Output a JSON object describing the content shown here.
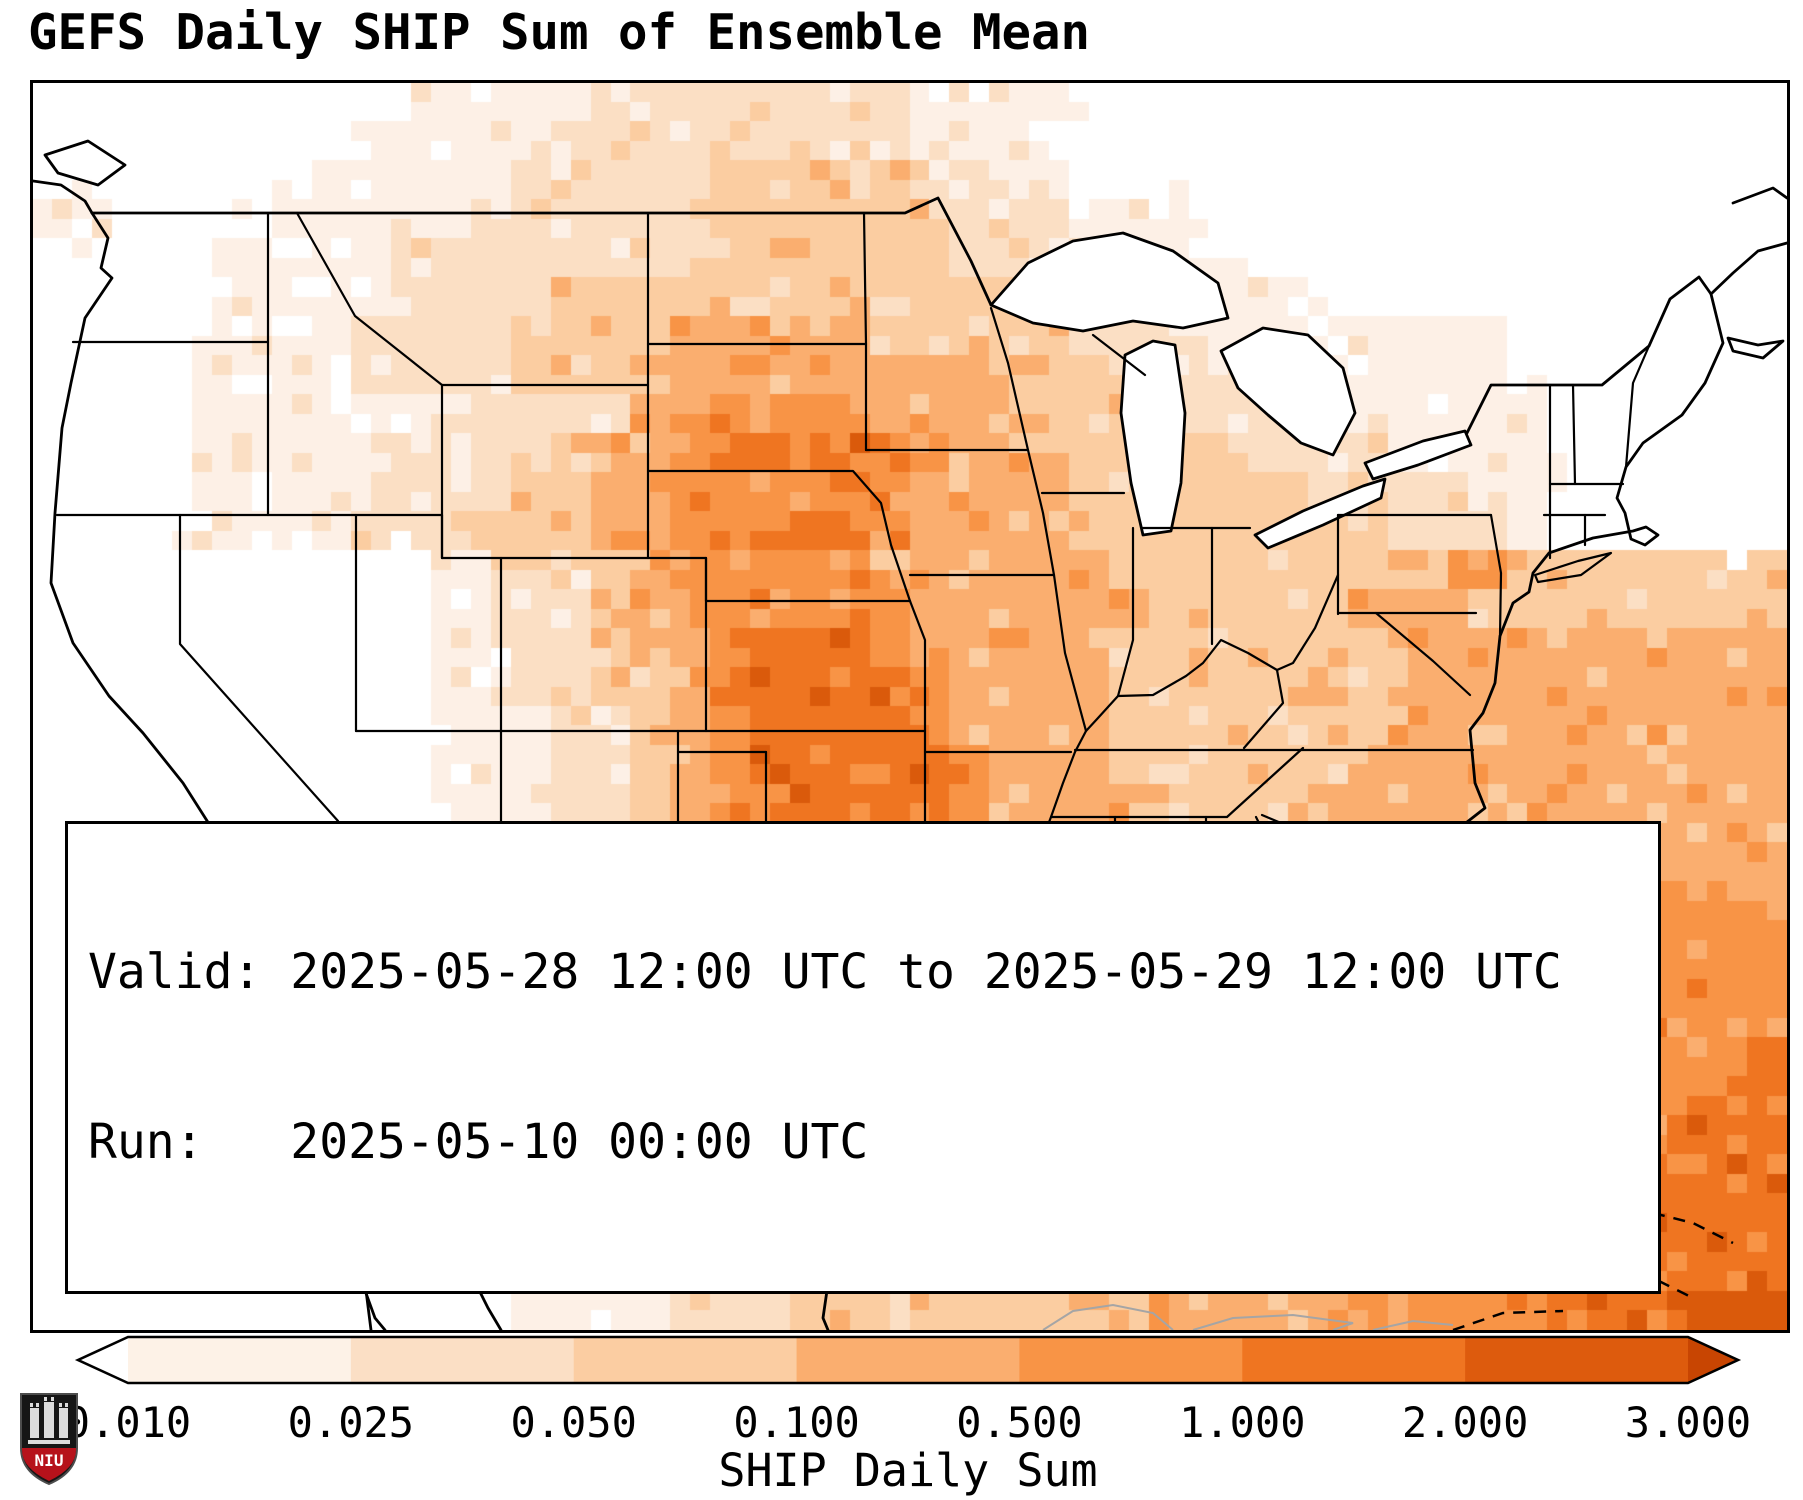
{
  "title": "GEFS Daily SHIP Sum of Ensemble Mean",
  "info": {
    "valid_line": "Valid: 2025-05-28 12:00 UTC to 2025-05-29 12:00 UTC",
    "run_line": "Run:   2025-05-10 00:00 UTC"
  },
  "colorbar": {
    "label": "SHIP Daily Sum",
    "ticks": [
      "0.010",
      "0.025",
      "0.050",
      "0.100",
      "0.500",
      "1.000",
      "2.000",
      "3.000"
    ],
    "segment_colors": [
      "#fdf2e7",
      "#fbdfc5",
      "#fbcda2",
      "#faae6f",
      "#f89446",
      "#ef7521",
      "#dd5b0d"
    ],
    "under_color": "#ffffff",
    "over_color": "#c84502"
  },
  "logo": {
    "text": "NIU"
  },
  "chart_data": {
    "type": "heatmap",
    "title": "GEFS Daily SHIP Sum of Ensemble Mean",
    "variable": "SHIP Daily Sum",
    "valid": "2025-05-28 12:00 UTC to 2025-05-29 12:00 UTC",
    "run": "2025-05-10 00:00 UTC",
    "scale_values": [
      0.01,
      0.025,
      0.05,
      0.1,
      0.5,
      1.0,
      2.0,
      3.0
    ],
    "palette": [
      "#ffffff",
      "#fdf0e6",
      "#fbdfc4",
      "#fbcda1",
      "#faae6f",
      "#f89446",
      "#ef7521",
      "#da5a0b",
      "#c64102"
    ],
    "level_ranges": {
      "0": "<0.010",
      "1": "0.010-0.025",
      "2": "0.025-0.050",
      "3": "0.050-0.100",
      "4": "0.100-0.500",
      "5": "0.500-1.000",
      "6": "1.000-2.000",
      "7": "2.000-3.000",
      "8": ">3.000"
    },
    "grid_rows": [
      "00000000011111222222221111000000000000000000",
      "00000000111112222222221110000000000000000000",
      "00000001111122222333332211000000000000000000",
      "11000111111222222333333222111000000000000000",
      "00000111122222222333333222211100000000000000",
      "00000111122223333333333333221111000000000000",
      "00001111222233334444433333222111111110000000",
      "00001111222233334444444443332222211110000000",
      "00001111112222244555544433332222211111000000",
      "00001111122222445666655444333322221111000000",
      "00001111222233445555554444333333222211000000",
      "00001111222333445566654444333333332221000000",
      "00000000001122344555544444433333333443333333",
      "00000000001122344555554444443333344433333333",
      "00000000001122344566654444433333334444444444",
      "00000000001122334566665444433333334444444444",
      "00000000001112234566665444433333334444444444",
      "00000000001112234566666544433333344444444444",
      "00000000001112234556666544443333444444444444",
      "00000000001112233455666544444444444444444444",
      "00000000001112233455555444444444444444444444",
      "00000000001112233444444444444444444444555555",
      "00000000001112223444444444444444444445555555",
      "00000000001112223444444444444444444455555555",
      "00000000001112233444444444444444444555555555",
      "00000000000111223444444444444444444555555556",
      "00000000000111223344444444444444455555555666",
      "00000000000111222344444444444444555555556666",
      "00000000000011122233333333333334445555556666",
      "00000000000011122233333333333344445555566666",
      "00000000000011112223333333333344444555556666",
      "00000000000011112223333333334444455555666777"
    ]
  }
}
